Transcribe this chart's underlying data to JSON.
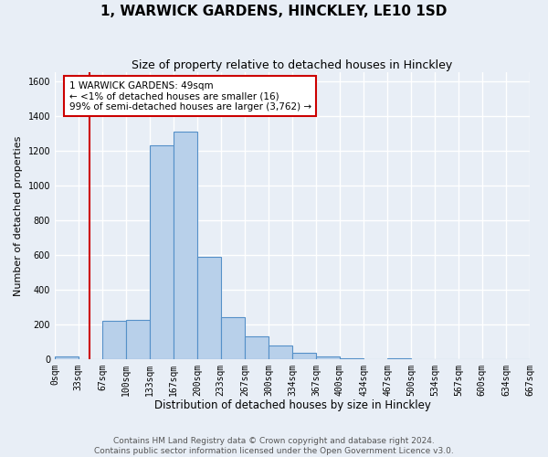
{
  "title": "1, WARWICK GARDENS, HINCKLEY, LE10 1SD",
  "subtitle": "Size of property relative to detached houses in Hinckley",
  "xlabel": "Distribution of detached houses by size in Hinckley",
  "ylabel": "Number of detached properties",
  "footer_line1": "Contains HM Land Registry data © Crown copyright and database right 2024.",
  "footer_line2": "Contains public sector information licensed under the Open Government Licence v3.0.",
  "bin_edges": [
    0,
    33,
    67,
    100,
    133,
    167,
    200,
    233,
    267,
    300,
    334,
    367,
    400,
    434,
    467,
    500,
    534,
    567,
    600,
    634,
    667
  ],
  "bar_heights": [
    15,
    0,
    220,
    225,
    1230,
    1310,
    590,
    240,
    130,
    75,
    35,
    15,
    5,
    0,
    5,
    0,
    0,
    0,
    0,
    0
  ],
  "bar_color": "#b8d0ea",
  "bar_edge_color": "#5590c8",
  "property_size": 49,
  "property_line_color": "#cc0000",
  "annotation_text": "1 WARWICK GARDENS: 49sqm\n← <1% of detached houses are smaller (16)\n99% of semi-detached houses are larger (3,762) →",
  "annotation_box_color": "#ffffff",
  "annotation_box_edge_color": "#cc0000",
  "ylim": [
    0,
    1650
  ],
  "yticks": [
    0,
    200,
    400,
    600,
    800,
    1000,
    1200,
    1400,
    1600
  ],
  "background_color": "#e8eef6",
  "plot_background_color": "#e8eef6",
  "grid_color": "#ffffff",
  "title_fontsize": 11,
  "subtitle_fontsize": 9,
  "tick_fontsize": 7,
  "ylabel_fontsize": 8,
  "xlabel_fontsize": 8.5,
  "footer_fontsize": 6.5,
  "annotation_fontsize": 7.5
}
